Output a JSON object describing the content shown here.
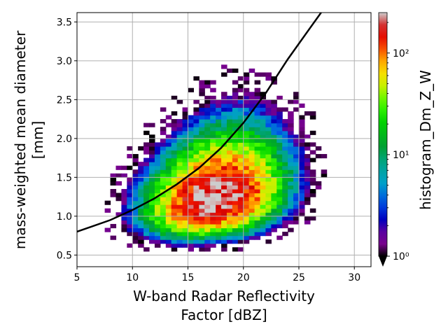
{
  "chart_data": {
    "type": "heatmap",
    "title": "",
    "xlabel_lines": [
      "W-band Radar Reflectivity",
      "Factor [dBZ]"
    ],
    "ylabel_lines": [
      "mass-weighted mean diameter",
      "[mm]"
    ],
    "xlim": [
      5,
      31.5
    ],
    "ylim": [
      0.35,
      3.62
    ],
    "x_ticks": [
      5,
      10,
      15,
      20,
      25,
      30
    ],
    "x_tick_labels": [
      "5",
      "10",
      "15",
      "20",
      "25",
      "30"
    ],
    "y_ticks": [
      0.5,
      1.0,
      1.5,
      2.0,
      2.5,
      3.0,
      3.5
    ],
    "y_tick_labels": [
      "0.5",
      "1.0",
      "1.5",
      "2.0",
      "2.5",
      "3.0",
      "3.5"
    ],
    "grid": true,
    "colormap": "nipy_spectral",
    "colorbar": {
      "label": "histogram_Dm_Z_W",
      "scale": "log",
      "range": [
        1,
        250
      ],
      "ticks": [
        1,
        10,
        100
      ],
      "tick_labels": [
        "10⁰",
        "10¹",
        "10²"
      ],
      "extend": "min"
    },
    "histogram_bins": {
      "x_start": 5,
      "x_step": 0.5,
      "y_start": 0.35,
      "y_step": 0.05
    },
    "density_peak": {
      "x": 17.5,
      "y": 1.25,
      "count": 250
    },
    "fit_curve": {
      "description": "black power-law fit line",
      "x": [
        5,
        8,
        10,
        12,
        14,
        16,
        18,
        20,
        22,
        24,
        26,
        27
      ],
      "y": [
        0.8,
        0.95,
        1.08,
        1.23,
        1.41,
        1.62,
        1.88,
        2.2,
        2.58,
        3.02,
        3.42,
        3.62
      ],
      "color": "#000000"
    }
  }
}
